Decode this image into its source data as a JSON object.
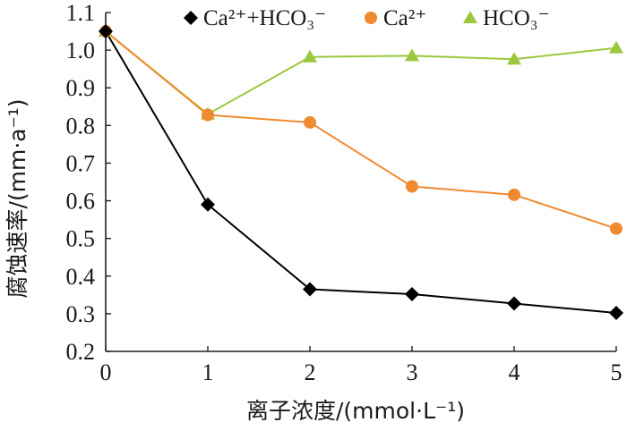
{
  "chart_data": {
    "type": "line",
    "x": [
      0,
      1,
      2,
      3,
      4,
      5
    ],
    "xlim": [
      0,
      5
    ],
    "ylim": [
      0.2,
      1.1
    ],
    "xticks": [
      "0",
      "1",
      "2",
      "3",
      "4",
      "5"
    ],
    "yticks": [
      "0.2",
      "0.3",
      "0.4",
      "0.5",
      "0.6",
      "0.7",
      "0.8",
      "0.9",
      "1.0",
      "1.1"
    ],
    "xlabel": "离子浓度/(mmol·L⁻¹)",
    "ylabel": "腐蚀速率/(mm·a⁻¹)",
    "grid": false,
    "legend_position": "top",
    "series": [
      {
        "name": "Ca²⁺+HCO₃⁻",
        "color": "#000000",
        "marker": "diamond",
        "values": [
          1.05,
          0.59,
          0.365,
          0.352,
          0.327,
          0.302
        ]
      },
      {
        "name": "Ca²⁺",
        "color": "#f08a30",
        "marker": "circle",
        "values": [
          1.05,
          0.828,
          0.808,
          0.638,
          0.616,
          0.526
        ]
      },
      {
        "name": "HCO₃⁻",
        "color": "#9bc83c",
        "marker": "triangle",
        "values": [
          1.05,
          0.83,
          0.982,
          0.985,
          0.976,
          1.006
        ]
      }
    ]
  }
}
